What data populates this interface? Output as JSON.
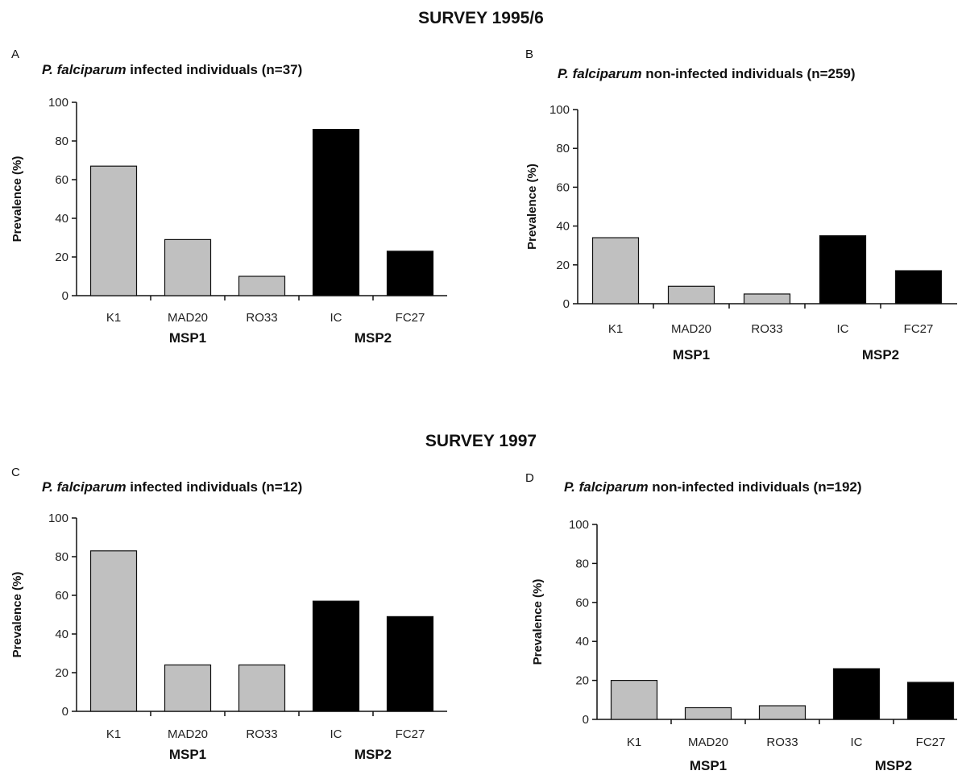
{
  "survey_titles": [
    "SURVEY 1995/6",
    "SURVEY 1997"
  ],
  "colors": {
    "MSP1": "#c0c0c0",
    "MSP2": "#000000",
    "axis": "#111111"
  },
  "chart_data": [
    {
      "type": "bar",
      "panel": "A",
      "title_italic": "P. falciparum",
      "title_rest": " infected individuals (n=37)",
      "ylabel": "Prevalence (%)",
      "ylim": [
        0,
        100
      ],
      "yticks": [
        0,
        20,
        40,
        60,
        80,
        100
      ],
      "categories": [
        "K1",
        "MAD20",
        "RO33",
        "IC",
        "FC27"
      ],
      "groups": [
        {
          "name": "MSP1",
          "categories": [
            "K1",
            "MAD20",
            "RO33"
          ]
        },
        {
          "name": "MSP2",
          "categories": [
            "IC",
            "FC27"
          ]
        }
      ],
      "values": [
        67,
        29,
        10,
        86,
        23
      ]
    },
    {
      "type": "bar",
      "panel": "B",
      "title_italic": "P. falciparum",
      "title_rest": " non-infected individuals (n=259)",
      "ylabel": "Prevalence (%)",
      "ylim": [
        0,
        100
      ],
      "yticks": [
        0,
        20,
        40,
        60,
        80,
        100
      ],
      "categories": [
        "K1",
        "MAD20",
        "RO33",
        "IC",
        "FC27"
      ],
      "groups": [
        {
          "name": "MSP1",
          "categories": [
            "K1",
            "MAD20",
            "RO33"
          ]
        },
        {
          "name": "MSP2",
          "categories": [
            "IC",
            "FC27"
          ]
        }
      ],
      "values": [
        34,
        9,
        5,
        35,
        17
      ]
    },
    {
      "type": "bar",
      "panel": "C",
      "title_italic": "P. falciparum",
      "title_rest": " infected individuals (n=12)",
      "ylabel": "Prevalence (%)",
      "ylim": [
        0,
        100
      ],
      "yticks": [
        0,
        20,
        40,
        60,
        80,
        100
      ],
      "categories": [
        "K1",
        "MAD20",
        "RO33",
        "IC",
        "FC27"
      ],
      "groups": [
        {
          "name": "MSP1",
          "categories": [
            "K1",
            "MAD20",
            "RO33"
          ]
        },
        {
          "name": "MSP2",
          "categories": [
            "IC",
            "FC27"
          ]
        }
      ],
      "values": [
        83,
        24,
        24,
        57,
        49
      ]
    },
    {
      "type": "bar",
      "panel": "D",
      "title_italic": "P. falciparum",
      "title_rest": " non-infected individuals (n=192)",
      "ylabel": "Prevalence (%)",
      "ylim": [
        0,
        100
      ],
      "yticks": [
        0,
        20,
        40,
        60,
        80,
        100
      ],
      "categories": [
        "K1",
        "MAD20",
        "RO33",
        "IC",
        "FC27"
      ],
      "groups": [
        {
          "name": "MSP1",
          "categories": [
            "K1",
            "MAD20",
            "RO33"
          ]
        },
        {
          "name": "MSP2",
          "categories": [
            "IC",
            "FC27"
          ]
        }
      ],
      "values": [
        20,
        6,
        7,
        26,
        19
      ]
    }
  ]
}
